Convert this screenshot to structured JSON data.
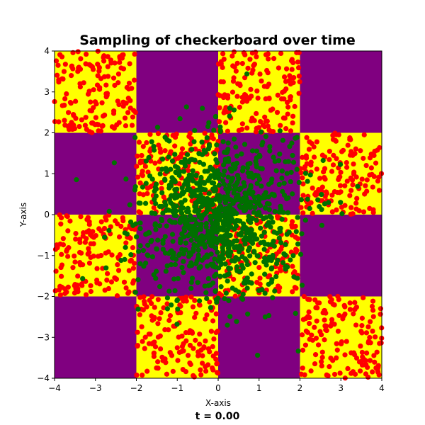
{
  "chart_data": {
    "type": "scatter",
    "title": "Sampling of checkerboard over time",
    "xlabel": "X-axis",
    "ylabel": "Y-axis",
    "time_label": "t = 0.00",
    "xlim": [
      -4,
      4
    ],
    "ylim": [
      -4,
      4
    ],
    "x_ticks": [
      "−4",
      "−3",
      "−2",
      "−1",
      "0",
      "1",
      "2",
      "3",
      "4"
    ],
    "y_ticks": [
      "−4",
      "−3",
      "−2",
      "−1",
      "0",
      "1",
      "2",
      "3",
      "4"
    ],
    "grid": false,
    "background": {
      "type": "checkerboard",
      "cell_size": 2,
      "colors": {
        "yellow": "#ffff00",
        "purple": "#800080"
      },
      "yellow_cells": [
        [
          -4,
          2
        ],
        [
          0,
          2
        ],
        [
          -2,
          0
        ],
        [
          2,
          0
        ],
        [
          -4,
          -2
        ],
        [
          0,
          -2
        ],
        [
          -2,
          -4
        ],
        [
          2,
          -4
        ]
      ]
    },
    "series": [
      {
        "role": "target",
        "color": "#ff0000",
        "count_per_cell": 150,
        "distribution": "uniform within yellow cells"
      },
      {
        "role": "samples",
        "color": "#007000",
        "count": 1000,
        "distribution": "standard normal, mean [0, 0], std 1"
      }
    ]
  }
}
